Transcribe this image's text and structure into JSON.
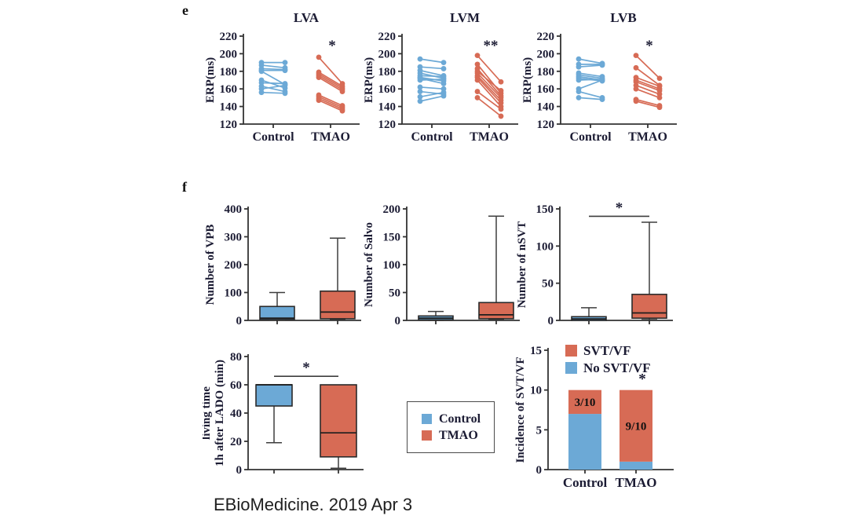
{
  "figure": {
    "panel_e_label": "e",
    "panel_f_label": "f",
    "caption": "EBioMedicine. 2019 Apr 3"
  },
  "colors": {
    "control": "#6CA9D6",
    "tmao": "#D76B55",
    "axis": "#333333",
    "text": "#1B1B33",
    "bar_label": "#111111"
  },
  "legend": {
    "items": [
      {
        "label": "Control",
        "color_key": "control"
      },
      {
        "label": "TMAO",
        "color_key": "tmao"
      }
    ]
  },
  "chart_data": [
    {
      "id": "lva",
      "panel": "e",
      "type": "paired-line",
      "title": "LVA",
      "ylabel": "ERP(ms)",
      "ylim": [
        120,
        220
      ],
      "yticks": [
        120,
        140,
        160,
        180,
        200,
        220
      ],
      "categories": [
        "Control",
        "TMAO"
      ],
      "significance": {
        "style": "star",
        "symbol": "*",
        "over_group": "TMAO"
      },
      "series": [
        {
          "name": "Control",
          "color_key": "control",
          "pairs": [
            [
              190,
              190
            ],
            [
              187,
              184
            ],
            [
              183,
              182
            ],
            [
              181,
              181
            ],
            [
              180,
              165
            ],
            [
              170,
              161
            ],
            [
              167,
              166
            ],
            [
              163,
              157
            ],
            [
              160,
              164
            ],
            [
              156,
              155
            ]
          ]
        },
        {
          "name": "TMAO",
          "color_key": "tmao",
          "pairs": [
            [
              196,
              166
            ],
            [
              179,
              163
            ],
            [
              177,
              161
            ],
            [
              175,
              159
            ],
            [
              173,
              157
            ],
            [
              153,
              141
            ],
            [
              151,
              139
            ],
            [
              149,
              137
            ],
            [
              147,
              135
            ]
          ]
        }
      ]
    },
    {
      "id": "lvm",
      "panel": "e",
      "type": "paired-line",
      "title": "LVM",
      "ylabel": "ERP(ms)",
      "ylim": [
        120,
        220
      ],
      "yticks": [
        120,
        140,
        160,
        180,
        200,
        220
      ],
      "categories": [
        "Control",
        "TMAO"
      ],
      "significance": {
        "style": "star",
        "symbol": "**",
        "over_group": "TMAO"
      },
      "series": [
        {
          "name": "Control",
          "color_key": "control",
          "pairs": [
            [
              194,
              190
            ],
            [
              185,
              183
            ],
            [
              181,
              175
            ],
            [
              178,
              172
            ],
            [
              175,
              174
            ],
            [
              173,
              169
            ],
            [
              172,
              166
            ],
            [
              170,
              171
            ],
            [
              162,
              160
            ],
            [
              157,
              154
            ],
            [
              151,
              156
            ],
            [
              146,
              152
            ]
          ]
        },
        {
          "name": "TMAO",
          "color_key": "tmao",
          "pairs": [
            [
              198,
              168
            ],
            [
              188,
              155
            ],
            [
              183,
              152
            ],
            [
              180,
              158
            ],
            [
              178,
              150
            ],
            [
              175,
              147
            ],
            [
              173,
              144
            ],
            [
              170,
              140
            ],
            [
              157,
              137
            ],
            [
              150,
              129
            ]
          ]
        }
      ]
    },
    {
      "id": "lvb",
      "panel": "e",
      "type": "paired-line",
      "title": "LVB",
      "ylabel": "ERP(ms)",
      "ylim": [
        120,
        220
      ],
      "yticks": [
        120,
        140,
        160,
        180,
        200,
        220
      ],
      "categories": [
        "Control",
        "TMAO"
      ],
      "significance": {
        "style": "star",
        "symbol": "*",
        "over_group": "TMAO"
      },
      "series": [
        {
          "name": "Control",
          "color_key": "control",
          "pairs": [
            [
              194,
              189
            ],
            [
              188,
              188
            ],
            [
              185,
              187
            ],
            [
              178,
              174
            ],
            [
              176,
              172
            ],
            [
              174,
              170
            ],
            [
              172,
              169
            ],
            [
              170,
              171
            ],
            [
              160,
              170
            ],
            [
              157,
              150
            ],
            [
              150,
              148
            ]
          ]
        },
        {
          "name": "TMAO",
          "color_key": "tmao",
          "pairs": [
            [
              198,
              172
            ],
            [
              184,
              164
            ],
            [
              173,
              163
            ],
            [
              170,
              160
            ],
            [
              168,
              158
            ],
            [
              164,
              154
            ],
            [
              160,
              150
            ],
            [
              148,
              141
            ],
            [
              146,
              139
            ]
          ]
        }
      ]
    },
    {
      "id": "vpb",
      "panel": "f",
      "type": "box",
      "ylabel": "Number of VPB",
      "ylim": [
        0,
        400
      ],
      "yticks": [
        0,
        100,
        200,
        300,
        400
      ],
      "categories": [
        "Control",
        "TMAO"
      ],
      "significance": null,
      "groups": [
        {
          "name": "Control",
          "color_key": "control",
          "whislo": 1,
          "q1": 3,
          "med": 8,
          "q3": 50,
          "whishi": 100
        },
        {
          "name": "TMAO",
          "color_key": "tmao",
          "whislo": 3,
          "q1": 6,
          "med": 30,
          "q3": 105,
          "whishi": 295
        }
      ]
    },
    {
      "id": "salvo",
      "panel": "f",
      "type": "box",
      "ylabel": "Number of Salvo",
      "ylim": [
        0,
        200
      ],
      "yticks": [
        0,
        50,
        100,
        150,
        200
      ],
      "categories": [
        "Control",
        "TMAO"
      ],
      "significance": null,
      "groups": [
        {
          "name": "Control",
          "color_key": "control",
          "whislo": 0,
          "q1": 1,
          "med": 4,
          "q3": 8,
          "whishi": 16
        },
        {
          "name": "TMAO",
          "color_key": "tmao",
          "whislo": 1,
          "q1": 3,
          "med": 10,
          "q3": 32,
          "whishi": 187
        }
      ]
    },
    {
      "id": "nsvt",
      "panel": "f",
      "type": "box",
      "ylabel": "Number of nSVT",
      "ylim": [
        0,
        150
      ],
      "yticks": [
        0,
        50,
        100,
        150
      ],
      "categories": [
        "Control",
        "TMAO"
      ],
      "significance": {
        "style": "bracket",
        "symbol": "*",
        "y_value": 140
      },
      "groups": [
        {
          "name": "Control",
          "color_key": "control",
          "whislo": 0,
          "q1": 0,
          "med": 2,
          "q3": 5,
          "whishi": 17
        },
        {
          "name": "TMAO",
          "color_key": "tmao",
          "whislo": 1,
          "q1": 3,
          "med": 10,
          "q3": 35,
          "whishi": 132
        }
      ]
    },
    {
      "id": "living",
      "panel": "f",
      "type": "box",
      "ylabel": "living time 1h after LADO (min)",
      "ylabel_lines": [
        "living time",
        "1h after LADO (min)"
      ],
      "ylim": [
        0,
        80
      ],
      "yticks": [
        0,
        20,
        40,
        60,
        80
      ],
      "categories": [
        "Control",
        "TMAO"
      ],
      "significance": {
        "style": "bracket",
        "symbol": "*",
        "y_value": 66
      },
      "groups": [
        {
          "name": "Control",
          "color_key": "control",
          "whislo": 19,
          "q1": 45,
          "med": 60,
          "q3": 60,
          "whishi": 60
        },
        {
          "name": "TMAO",
          "color_key": "tmao",
          "whislo": 1,
          "q1": 9,
          "med": 26,
          "q3": 60,
          "whishi": 60
        }
      ]
    },
    {
      "id": "incidence",
      "panel": "f",
      "type": "stacked-bar",
      "ylabel": "Incidence of SVT/VF",
      "ylim": [
        0,
        15
      ],
      "yticks": [
        0,
        5,
        10,
        15
      ],
      "categories": [
        "Control",
        "TMAO"
      ],
      "series": [
        {
          "name": "No SVT/VF",
          "color_key": "control",
          "values": [
            7,
            1
          ]
        },
        {
          "name": "SVT/VF",
          "color_key": "tmao",
          "values": [
            3,
            9
          ]
        }
      ],
      "bar_labels": [
        "3/10",
        "9/10"
      ],
      "significance": {
        "style": "star",
        "symbol": "*",
        "over_group": "TMAO"
      },
      "legend": [
        {
          "label": "SVT/VF",
          "color_key": "tmao"
        },
        {
          "label": "No SVT/VF",
          "color_key": "control"
        }
      ]
    }
  ]
}
